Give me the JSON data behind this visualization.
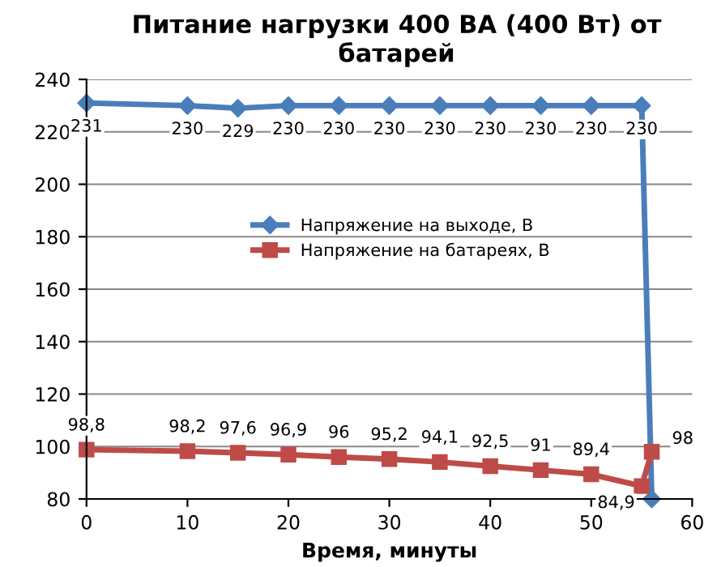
{
  "chart_data": {
    "type": "line",
    "title": "Питание нагрузки 400 ВА (400 Вт) от батарей",
    "xlabel": "Время, минуты",
    "xlim": [
      0,
      60
    ],
    "xticks": [
      0,
      10,
      20,
      30,
      40,
      50,
      60
    ],
    "ylim": [
      80,
      240
    ],
    "yticks": [
      80,
      100,
      120,
      140,
      160,
      180,
      200,
      220,
      240
    ],
    "grid": "y",
    "legend": "top right",
    "series": [
      {
        "name": "Напряжение на выходе, В",
        "color": "#4a7ebb",
        "marker": "diamond",
        "x": [
          0,
          10,
          15,
          20,
          25,
          30,
          35,
          40,
          45,
          50,
          55,
          56
        ],
        "values": [
          231,
          230,
          229,
          230,
          230,
          230,
          230,
          230,
          230,
          230,
          230,
          80
        ],
        "value_labels": [
          "231",
          "230",
          "229",
          "230",
          "230",
          "230",
          "230",
          "230",
          "230",
          "230",
          "230",
          null
        ]
      },
      {
        "name": "Напряжение на батареях, В",
        "color": "#be4b48",
        "marker": "square",
        "x": [
          0,
          10,
          15,
          20,
          25,
          30,
          35,
          40,
          45,
          50,
          55,
          56
        ],
        "values": [
          98.8,
          98.2,
          97.6,
          96.9,
          96,
          95.2,
          94.1,
          92.5,
          91,
          89.4,
          84.9,
          98
        ],
        "value_labels": [
          "98,8",
          "98,2",
          "97,6",
          "96,9",
          "96",
          "95,2",
          "94,1",
          "92,5",
          "91",
          "89,4",
          "84,9",
          "98"
        ]
      }
    ]
  }
}
